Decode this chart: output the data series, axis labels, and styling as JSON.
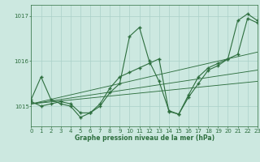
{
  "title": "Graphe pression niveau de la mer (hPa)",
  "bg_color": "#cce8e0",
  "grid_color": "#aad0c8",
  "line_color": "#2d6e3e",
  "x_min": 0,
  "x_max": 23,
  "y_min": 1014.55,
  "y_max": 1017.25,
  "yticks": [
    1015,
    1016,
    1017
  ],
  "xticks": [
    0,
    1,
    2,
    3,
    4,
    5,
    6,
    7,
    8,
    9,
    10,
    11,
    12,
    13,
    14,
    15,
    16,
    17,
    18,
    19,
    20,
    21,
    22,
    23
  ],
  "series1_x": [
    0,
    1,
    2,
    3,
    4,
    5,
    6,
    7,
    8,
    9,
    10,
    11,
    12,
    13,
    14,
    15,
    16,
    17,
    18,
    19,
    20,
    21,
    22,
    23
  ],
  "series1_y": [
    1015.15,
    1015.65,
    1015.15,
    1015.05,
    1015.0,
    1014.75,
    1014.85,
    1015.0,
    1015.3,
    1015.5,
    1016.55,
    1016.75,
    1016.0,
    1015.55,
    1014.9,
    1014.82,
    1015.25,
    1015.65,
    1015.85,
    1015.95,
    1016.05,
    1016.9,
    1017.05,
    1016.9
  ],
  "series2_x": [
    0,
    1,
    2,
    3,
    4,
    5,
    6,
    7,
    8,
    9,
    10,
    11,
    12,
    13,
    14,
    15,
    16,
    17,
    18,
    19,
    20,
    21,
    22,
    23
  ],
  "series2_y": [
    1015.1,
    1015.0,
    1015.05,
    1015.1,
    1015.05,
    1014.85,
    1014.85,
    1015.05,
    1015.4,
    1015.65,
    1015.75,
    1015.85,
    1015.95,
    1016.05,
    1014.88,
    1014.82,
    1015.2,
    1015.5,
    1015.8,
    1015.9,
    1016.05,
    1016.15,
    1016.95,
    1016.85
  ],
  "trend1": [
    1015.05,
    1016.2
  ],
  "trend2": [
    1015.05,
    1015.8
  ],
  "trend3": [
    1015.05,
    1015.55
  ]
}
